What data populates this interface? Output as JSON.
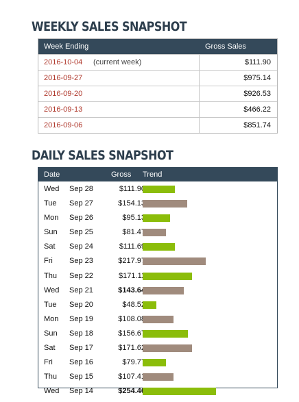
{
  "weekly": {
    "title": "WEEKLY SALES SNAPSHOT",
    "columns": [
      "Week Ending",
      "Gross Sales"
    ],
    "rows": [
      {
        "week_ending": "2016-10-04",
        "note": "(current week)",
        "gross": "$111.90"
      },
      {
        "week_ending": "2016-09-27",
        "note": "",
        "gross": "$975.14"
      },
      {
        "week_ending": "2016-09-20",
        "note": "",
        "gross": "$926.53"
      },
      {
        "week_ending": "2016-09-13",
        "note": "",
        "gross": "$466.22"
      },
      {
        "week_ending": "2016-09-06",
        "note": "",
        "gross": "$851.74"
      }
    ]
  },
  "daily": {
    "title": "DAILY SALES SNAPSHOT",
    "columns": [
      "Date",
      "Gross",
      "Trend"
    ],
    "colors": {
      "green": "#8bbd0a",
      "brown": "#a08b7d"
    },
    "trend_max": 254.46,
    "rows": [
      {
        "dow": "Wed",
        "date": "Sep 28",
        "gross": "$111.90",
        "value": 111.9,
        "bold": false,
        "color": "green"
      },
      {
        "dow": "Tue",
        "date": "Sep 27",
        "gross": "$154.13",
        "value": 154.13,
        "bold": false,
        "color": "brown"
      },
      {
        "dow": "Mon",
        "date": "Sep 26",
        "gross": "$95.13",
        "value": 95.13,
        "bold": false,
        "color": "green"
      },
      {
        "dow": "Sun",
        "date": "Sep 25",
        "gross": "$81.47",
        "value": 81.47,
        "bold": false,
        "color": "brown"
      },
      {
        "dow": "Sat",
        "date": "Sep 24",
        "gross": "$111.69",
        "value": 111.69,
        "bold": false,
        "color": "green"
      },
      {
        "dow": "Fri",
        "date": "Sep 23",
        "gross": "$217.97",
        "value": 217.97,
        "bold": false,
        "color": "brown"
      },
      {
        "dow": "Thu",
        "date": "Sep 22",
        "gross": "$171.11",
        "value": 171.11,
        "bold": false,
        "color": "green"
      },
      {
        "dow": "Wed",
        "date": "Sep 21",
        "gross": "$143.64",
        "value": 143.64,
        "bold": true,
        "color": "brown"
      },
      {
        "dow": "Tue",
        "date": "Sep 20",
        "gross": "$48.52",
        "value": 48.52,
        "bold": false,
        "color": "green"
      },
      {
        "dow": "Mon",
        "date": "Sep 19",
        "gross": "$108.08",
        "value": 108.08,
        "bold": false,
        "color": "brown"
      },
      {
        "dow": "Sun",
        "date": "Sep 18",
        "gross": "$156.67",
        "value": 156.67,
        "bold": false,
        "color": "green"
      },
      {
        "dow": "Sat",
        "date": "Sep 17",
        "gross": "$171.62",
        "value": 171.62,
        "bold": false,
        "color": "brown"
      },
      {
        "dow": "Fri",
        "date": "Sep 16",
        "gross": "$79.77",
        "value": 79.77,
        "bold": false,
        "color": "green"
      },
      {
        "dow": "Thu",
        "date": "Sep 15",
        "gross": "$107.41",
        "value": 107.41,
        "bold": false,
        "color": "brown"
      },
      {
        "dow": "Wed",
        "date": "Sep 14",
        "gross": "$254.46",
        "value": 254.46,
        "bold": true,
        "color": "green"
      }
    ]
  }
}
